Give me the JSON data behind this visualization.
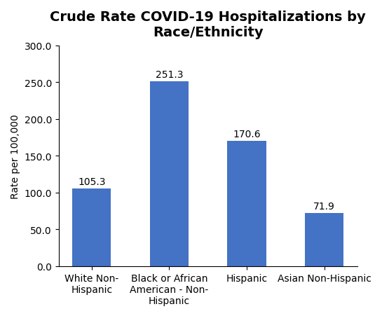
{
  "title": "Crude Rate COVID-19 Hospitalizations by\nRace/Ethnicity",
  "categories": [
    "White Non-\nHispanic",
    "Black or African\nAmerican - Non-\nHispanic",
    "Hispanic",
    "Asian Non-Hispanic"
  ],
  "values": [
    105.3,
    251.3,
    170.6,
    71.9
  ],
  "bar_color": "#4472C4",
  "ylabel": "Rate per 100,000",
  "ylim": [
    0,
    300
  ],
  "yticks": [
    0.0,
    50.0,
    100.0,
    150.0,
    200.0,
    250.0,
    300.0
  ],
  "title_fontsize": 14,
  "label_fontsize": 10,
  "tick_fontsize": 10,
  "bar_width": 0.5,
  "value_label_fontsize": 10,
  "background_color": "#ffffff"
}
